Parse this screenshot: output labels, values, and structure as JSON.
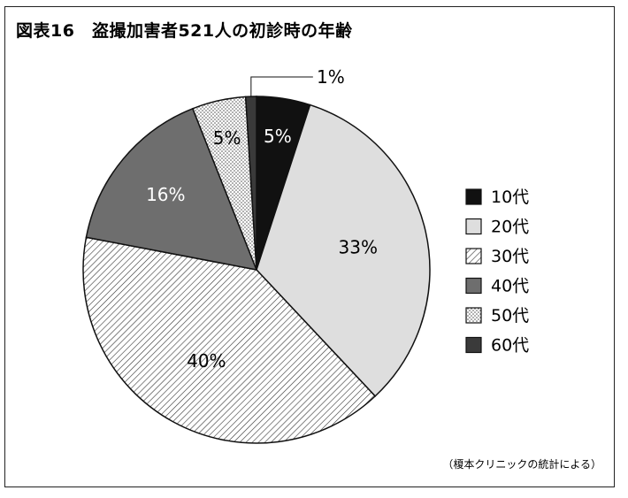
{
  "chart_data": {
    "type": "pie",
    "title": "図表16　盗撮加害者521人の初診時の年齢",
    "source_note": "（榎本クリニックの統計による）",
    "slices": [
      {
        "name": "10代",
        "value": 5,
        "label": "5%",
        "color": "#111111",
        "pattern": "solid",
        "label_color": "#ffffff"
      },
      {
        "name": "20代",
        "value": 33,
        "label": "33%",
        "color": "#dedede",
        "pattern": "solid",
        "label_color": "#000000"
      },
      {
        "name": "30代",
        "value": 40,
        "label": "40%",
        "color": "#ffffff",
        "pattern": "hatch",
        "label_color": "#000000"
      },
      {
        "name": "40代",
        "value": 16,
        "label": "16%",
        "color": "#6e6e6e",
        "pattern": "solid",
        "label_color": "#ffffff"
      },
      {
        "name": "50代",
        "value": 5,
        "label": "5%",
        "color": "#ffffff",
        "pattern": "dots",
        "label_color": "#000000"
      },
      {
        "name": "60代",
        "value": 1,
        "label": "1%",
        "color": "#3a3a3a",
        "pattern": "solid",
        "label_color": "#000000"
      }
    ],
    "legend_position": "right"
  }
}
